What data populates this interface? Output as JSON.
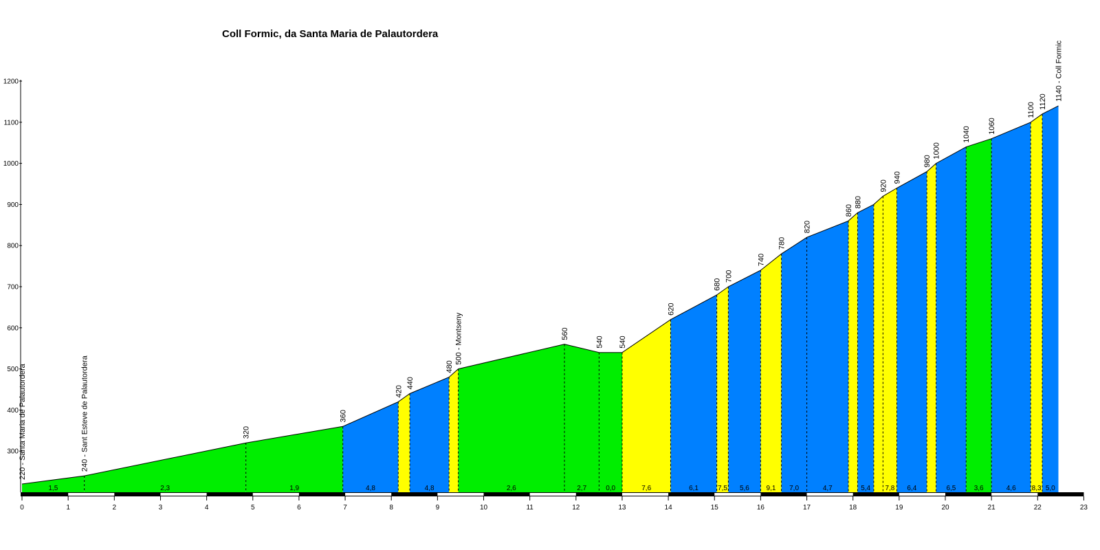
{
  "chart_data": {
    "type": "area",
    "title": "Coll Formic, da Santa Maria de Palautordera",
    "xlabel": "",
    "ylabel": "",
    "xlim": [
      0,
      23
    ],
    "ylim": [
      200,
      1200
    ],
    "x_ticks": [
      0,
      1,
      2,
      3,
      4,
      5,
      6,
      7,
      8,
      9,
      10,
      11,
      12,
      13,
      14,
      15,
      16,
      17,
      18,
      19,
      20,
      21,
      22,
      23
    ],
    "y_ticks": [
      300,
      400,
      500,
      600,
      700,
      800,
      900,
      1000,
      1100,
      1200
    ],
    "grid": false,
    "legend": "none",
    "colors": {
      "green": "#00ee00",
      "blue": "#0080ff",
      "yellow": "#ffff00"
    },
    "profile": [
      {
        "km": 0.0,
        "alt": 220
      },
      {
        "km": 1.35,
        "alt": 240
      },
      {
        "km": 4.85,
        "alt": 320
      },
      {
        "km": 6.95,
        "alt": 360
      },
      {
        "km": 8.15,
        "alt": 420
      },
      {
        "km": 8.4,
        "alt": 440
      },
      {
        "km": 9.25,
        "alt": 480
      },
      {
        "km": 9.45,
        "alt": 500
      },
      {
        "km": 11.75,
        "alt": 560
      },
      {
        "km": 12.5,
        "alt": 540
      },
      {
        "km": 13.0,
        "alt": 540
      },
      {
        "km": 14.05,
        "alt": 620
      },
      {
        "km": 15.05,
        "alt": 680
      },
      {
        "km": 15.3,
        "alt": 700
      },
      {
        "km": 16.0,
        "alt": 740
      },
      {
        "km": 16.45,
        "alt": 780
      },
      {
        "km": 17.0,
        "alt": 820
      },
      {
        "km": 17.9,
        "alt": 860
      },
      {
        "km": 18.1,
        "alt": 880
      },
      {
        "km": 18.45,
        "alt": 900
      },
      {
        "km": 18.65,
        "alt": 920
      },
      {
        "km": 18.95,
        "alt": 940
      },
      {
        "km": 19.6,
        "alt": 980
      },
      {
        "km": 19.8,
        "alt": 1000
      },
      {
        "km": 20.45,
        "alt": 1040
      },
      {
        "km": 21.0,
        "alt": 1060
      },
      {
        "km": 21.85,
        "alt": 1100
      },
      {
        "km": 22.1,
        "alt": 1120
      },
      {
        "km": 22.45,
        "alt": 1140
      }
    ],
    "segments": [
      {
        "from": 0.0,
        "to": 1.35,
        "gradient": "1,5",
        "color": "green"
      },
      {
        "from": 1.35,
        "to": 4.85,
        "gradient": "2,3",
        "color": "green"
      },
      {
        "from": 4.85,
        "to": 6.95,
        "gradient": "1,9",
        "color": "green"
      },
      {
        "from": 6.95,
        "to": 8.15,
        "gradient": "4,8",
        "color": "blue"
      },
      {
        "from": 8.15,
        "to": 8.4,
        "gradient": "",
        "color": "yellow"
      },
      {
        "from": 8.4,
        "to": 9.25,
        "gradient": "4,8",
        "color": "blue"
      },
      {
        "from": 9.25,
        "to": 9.45,
        "gradient": "",
        "color": "yellow"
      },
      {
        "from": 9.45,
        "to": 11.75,
        "gradient": "2,6",
        "color": "green"
      },
      {
        "from": 11.75,
        "to": 12.5,
        "gradient": "2,7",
        "color": "green"
      },
      {
        "from": 12.5,
        "to": 13.0,
        "gradient": "0,0",
        "color": "green"
      },
      {
        "from": 13.0,
        "to": 14.05,
        "gradient": "7,6",
        "color": "yellow"
      },
      {
        "from": 14.05,
        "to": 15.05,
        "gradient": "6,1",
        "color": "blue"
      },
      {
        "from": 15.05,
        "to": 15.3,
        "gradient": "7,5",
        "color": "yellow"
      },
      {
        "from": 15.3,
        "to": 16.0,
        "gradient": "5,6",
        "color": "blue"
      },
      {
        "from": 16.0,
        "to": 16.45,
        "gradient": "9,1",
        "color": "yellow"
      },
      {
        "from": 16.45,
        "to": 17.0,
        "gradient": "7,0",
        "color": "blue"
      },
      {
        "from": 17.0,
        "to": 17.9,
        "gradient": "4,7",
        "color": "blue"
      },
      {
        "from": 17.9,
        "to": 18.1,
        "gradient": "",
        "color": "yellow"
      },
      {
        "from": 18.1,
        "to": 18.45,
        "gradient": "5,4",
        "color": "blue"
      },
      {
        "from": 18.45,
        "to": 18.65,
        "gradient": "",
        "color": "yellow"
      },
      {
        "from": 18.65,
        "to": 18.95,
        "gradient": "7,8",
        "color": "yellow"
      },
      {
        "from": 18.95,
        "to": 19.6,
        "gradient": "6,4",
        "color": "blue"
      },
      {
        "from": 19.6,
        "to": 19.8,
        "gradient": "",
        "color": "yellow"
      },
      {
        "from": 19.8,
        "to": 20.45,
        "gradient": "6,5",
        "color": "blue"
      },
      {
        "from": 20.45,
        "to": 21.0,
        "gradient": "3,6",
        "color": "green"
      },
      {
        "from": 21.0,
        "to": 21.85,
        "gradient": "4,6",
        "color": "blue"
      },
      {
        "from": 21.85,
        "to": 22.1,
        "gradient": "8,3",
        "color": "yellow"
      },
      {
        "from": 22.1,
        "to": 22.45,
        "gradient": "5,0",
        "color": "blue"
      }
    ],
    "altitude_labels": [
      {
        "km": 0.0,
        "text": "220 - Santa Maria de Palautordera"
      },
      {
        "km": 1.35,
        "text": "240 - Sant Esteve de Palautordera"
      },
      {
        "km": 4.85,
        "text": "320"
      },
      {
        "km": 6.95,
        "text": "360"
      },
      {
        "km": 8.15,
        "text": "420"
      },
      {
        "km": 8.4,
        "text": "440"
      },
      {
        "km": 9.25,
        "text": "480"
      },
      {
        "km": 9.45,
        "text": "500 - Montseny"
      },
      {
        "km": 11.75,
        "text": "560"
      },
      {
        "km": 12.5,
        "text": "540"
      },
      {
        "km": 13.0,
        "text": "540"
      },
      {
        "km": 14.05,
        "text": "620"
      },
      {
        "km": 15.05,
        "text": "680"
      },
      {
        "km": 15.3,
        "text": "700"
      },
      {
        "km": 16.0,
        "text": "740"
      },
      {
        "km": 16.45,
        "text": "780"
      },
      {
        "km": 17.0,
        "text": "820"
      },
      {
        "km": 17.9,
        "text": "860"
      },
      {
        "km": 18.1,
        "text": "880"
      },
      {
        "km": 18.65,
        "text": "920"
      },
      {
        "km": 18.95,
        "text": "940"
      },
      {
        "km": 19.6,
        "text": "980"
      },
      {
        "km": 19.8,
        "text": "1000"
      },
      {
        "km": 20.45,
        "text": "1040"
      },
      {
        "km": 21.0,
        "text": "1060"
      },
      {
        "km": 21.85,
        "text": "1100"
      },
      {
        "km": 22.1,
        "text": "1120"
      },
      {
        "km": 22.45,
        "text": "1140 - Coll Formic"
      }
    ]
  }
}
